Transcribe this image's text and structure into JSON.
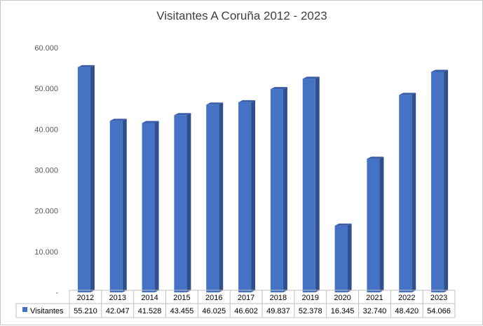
{
  "chart_data": {
    "type": "bar",
    "title": "Visitantes A Coruña  2012 - 2023",
    "categories": [
      "2012",
      "2013",
      "2014",
      "2015",
      "2016",
      "2017",
      "2018",
      "2019",
      "2020",
      "2021",
      "2022",
      "2023"
    ],
    "series": [
      {
        "name": "Visitantes",
        "values": [
          55210,
          42047,
          41528,
          43455,
          46025,
          46602,
          49837,
          52378,
          16345,
          32740,
          48420,
          54066
        ],
        "value_labels": [
          "55.210",
          "42.047",
          "41.528",
          "43.455",
          "46.025",
          "46.602",
          "49.837",
          "52.378",
          "16.345",
          "32.740",
          "48.420",
          "54.066"
        ],
        "color": "#4472C4"
      }
    ],
    "ylim": [
      0,
      60000
    ],
    "yticks": [
      0,
      10000,
      20000,
      30000,
      40000,
      50000,
      60000
    ],
    "ytick_labels": [
      "-",
      "10.000",
      "20.000",
      "30.000",
      "40.000",
      "50.000",
      "60.000"
    ],
    "grid": false,
    "data_table": true,
    "legend_placement": "data-table"
  }
}
